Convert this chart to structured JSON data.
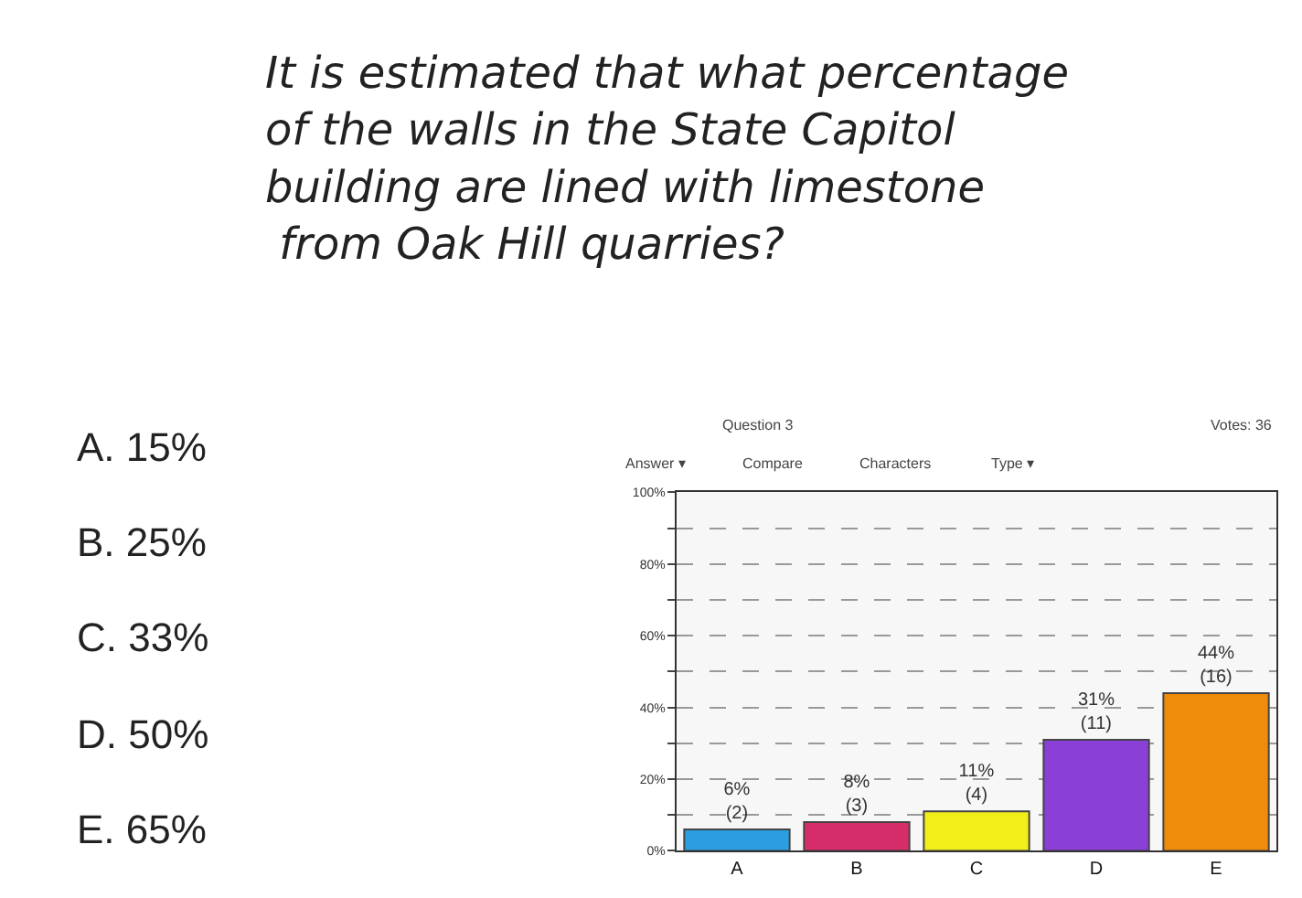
{
  "chart_data": {
    "type": "bar",
    "title": "It is estimated that what percentage\nof the walls in the State Capitol\nbuilding are lined with limestone\n from Oak Hill quarries?",
    "categories": [
      "A",
      "B",
      "C",
      "D",
      "E"
    ],
    "values": [
      6,
      8,
      11,
      31,
      44
    ],
    "colors": [
      "#2a9ee0",
      "#d42d6a",
      "#f2ee1a",
      "#8a3fd6",
      "#f08c0c"
    ],
    "value_labels": [
      "6%\n(2)",
      "8%\n(3)",
      "11%\n(4)",
      "31%\n(11)",
      "44%\n(16)"
    ],
    "ylim": [
      0,
      100
    ],
    "yticks": [
      {
        "value": 0,
        "label": "0%"
      },
      {
        "value": 10,
        "label": null
      },
      {
        "value": 20,
        "label": "20%"
      },
      {
        "value": 30,
        "label": null
      },
      {
        "value": 40,
        "label": "40%"
      },
      {
        "value": 50,
        "label": null
      },
      {
        "value": 60,
        "label": "60%"
      },
      {
        "value": 70,
        "label": null
      },
      {
        "value": 80,
        "label": "80%"
      },
      {
        "value": 90,
        "label": null
      },
      {
        "value": 100,
        "label": "100%"
      }
    ],
    "grid": "y",
    "annotations": [
      "A. 15%",
      "B. 25%",
      "C. 33%",
      "D. 50%",
      "E. 65%",
      "Question 3",
      "Votes: 36",
      "Answer ▾",
      "Compare",
      "Characters",
      "Type ▾"
    ]
  }
}
